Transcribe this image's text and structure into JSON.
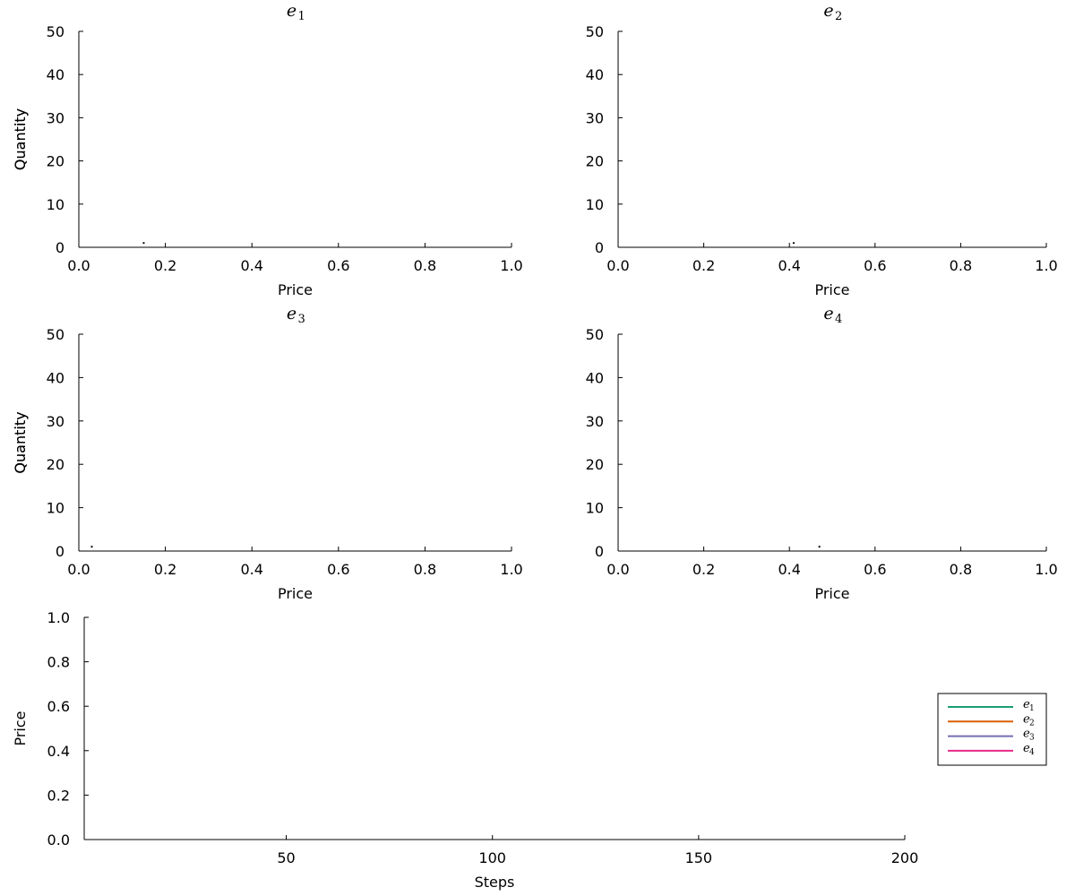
{
  "chart_data": [
    {
      "type": "scatter",
      "title": "e",
      "title_subscript": "1",
      "xlabel": "Price",
      "ylabel": "Quantity",
      "xlim": [
        0,
        1
      ],
      "ylim": [
        0,
        50
      ],
      "xticks": [
        "0.0",
        "0.2",
        "0.4",
        "0.6",
        "0.8",
        "1.0"
      ],
      "yticks": [
        "0",
        "10",
        "20",
        "30",
        "40",
        "50"
      ],
      "grid": false,
      "points": [
        {
          "x": 0.15,
          "y": 1
        }
      ]
    },
    {
      "type": "scatter",
      "title": "e",
      "title_subscript": "2",
      "xlabel": "Price",
      "ylabel": "Quantity",
      "xlim": [
        0,
        1
      ],
      "ylim": [
        0,
        50
      ],
      "xticks": [
        "0.0",
        "0.2",
        "0.4",
        "0.6",
        "0.8",
        "1.0"
      ],
      "yticks": [
        "0",
        "10",
        "20",
        "30",
        "40",
        "50"
      ],
      "grid": false,
      "points": [
        {
          "x": 0.41,
          "y": 1
        }
      ]
    },
    {
      "type": "scatter",
      "title": "e",
      "title_subscript": "3",
      "xlabel": "Price",
      "ylabel": "Quantity",
      "xlim": [
        0,
        1
      ],
      "ylim": [
        0,
        50
      ],
      "xticks": [
        "0.0",
        "0.2",
        "0.4",
        "0.6",
        "0.8",
        "1.0"
      ],
      "yticks": [
        "0",
        "10",
        "20",
        "30",
        "40",
        "50"
      ],
      "grid": false,
      "points": [
        {
          "x": 0.03,
          "y": 1
        }
      ]
    },
    {
      "type": "scatter",
      "title": "e",
      "title_subscript": "4",
      "xlabel": "Price",
      "ylabel": "Quantity",
      "xlim": [
        0,
        1
      ],
      "ylim": [
        0,
        50
      ],
      "xticks": [
        "0.0",
        "0.2",
        "0.4",
        "0.6",
        "0.8",
        "1.0"
      ],
      "yticks": [
        "0",
        "10",
        "20",
        "30",
        "40",
        "50"
      ],
      "grid": false,
      "points": [
        {
          "x": 0.47,
          "y": 1
        }
      ]
    },
    {
      "type": "line",
      "title": "",
      "xlabel": "Steps",
      "ylabel": "Price",
      "xlim": [
        1,
        200
      ],
      "ylim": [
        0,
        1
      ],
      "xticks": [
        50,
        100,
        150,
        200
      ],
      "yticks": [
        "0.0",
        "0.2",
        "0.4",
        "0.6",
        "0.8",
        "1.0"
      ],
      "grid": false,
      "legend_position": "right",
      "series": [
        {
          "name": "e",
          "name_subscript": "1",
          "color": "#1b9e77",
          "values": []
        },
        {
          "name": "e",
          "name_subscript": "2",
          "color": "#d95f02",
          "values": []
        },
        {
          "name": "e",
          "name_subscript": "3",
          "color": "#7570b3",
          "values": []
        },
        {
          "name": "e",
          "name_subscript": "4",
          "color": "#e7298a",
          "values": []
        }
      ]
    }
  ]
}
